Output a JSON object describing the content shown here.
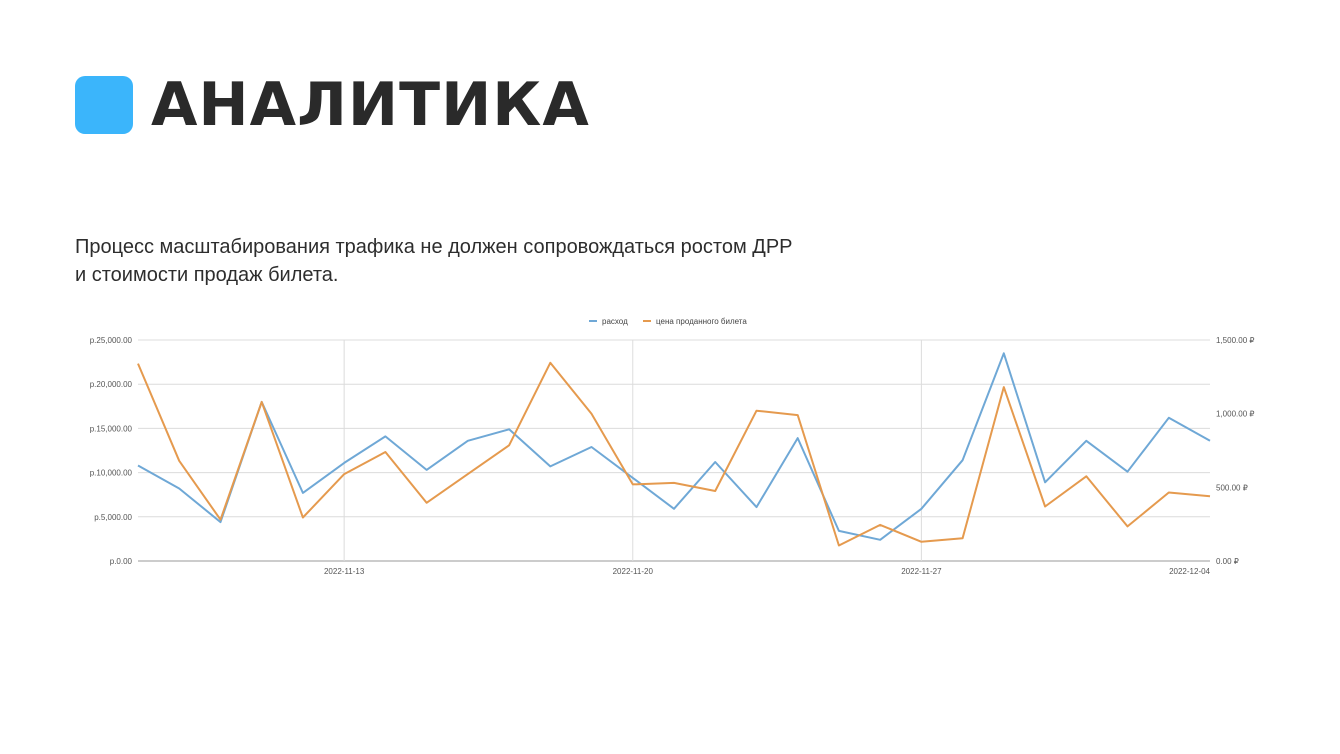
{
  "header": {
    "title": "АНАЛИТИКА",
    "accent_color": "#3bb5fb"
  },
  "subtitle": {
    "line1": "Процесс масштабирования трафика не должен сопровождаться ростом ДРР",
    "line2": "и стоимости продаж билета."
  },
  "chart_data": {
    "type": "line",
    "title": "",
    "legend_position": "top-center",
    "grid": true,
    "x_labels": [
      "2022-11-13",
      "2022-11-20",
      "2022-11-27",
      "2022-12-04"
    ],
    "x_start": "2022-11-08",
    "y_left": {
      "ylim": [
        0,
        25000
      ],
      "ticks": [
        0,
        5000,
        10000,
        15000,
        20000,
        25000
      ],
      "tick_labels": [
        "р.0.00",
        "р.5,000.00",
        "р.10,000.00",
        "р.15,000.00",
        "р.20,000.00",
        "р.25,000.00"
      ]
    },
    "y_right": {
      "ylim": [
        0,
        1500
      ],
      "ticks": [
        0,
        500,
        1000,
        1500
      ],
      "tick_labels": [
        "0.00 ₽",
        "500.00 ₽",
        "1,000.00 ₽",
        "1,500.00 ₽"
      ]
    },
    "series": [
      {
        "name": "расход",
        "axis": "left",
        "color": "#6fa8d6",
        "values": [
          10800,
          8200,
          4400,
          18000,
          7700,
          11100,
          14100,
          10300,
          13600,
          14900,
          10700,
          12900,
          9400,
          5900,
          11200,
          6100,
          13900,
          3400,
          2400,
          5900,
          11400,
          23500,
          8900,
          13600,
          10100,
          16200,
          13600
        ]
      },
      {
        "name": "цена проданного билета",
        "axis": "right",
        "color": "#e59a4e",
        "values": [
          1340,
          680,
          280,
          1080,
          295,
          590,
          740,
          395,
          590,
          785,
          1345,
          1000,
          520,
          530,
          475,
          1020,
          990,
          105,
          245,
          130,
          155,
          1180,
          370,
          575,
          235,
          465,
          440
        ]
      }
    ]
  }
}
